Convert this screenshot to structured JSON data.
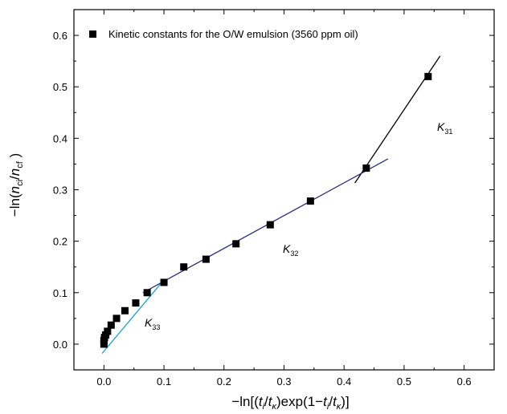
{
  "chart_data": {
    "type": "scatter",
    "xlabel": "−ln[(t_i/t_κ)exp(1−t_i/t_κ)]",
    "ylabel": "−ln(n_ci/n_cf)",
    "xlim": [
      -0.05,
      0.65
    ],
    "ylim": [
      -0.05,
      0.65
    ],
    "x_ticks": [
      "0.0",
      "0.1",
      "0.2",
      "0.3",
      "0.4",
      "0.5",
      "0.6"
    ],
    "y_ticks": [
      "0.0",
      "0.1",
      "0.2",
      "0.3",
      "0.4",
      "0.5",
      "0.6"
    ],
    "legend": {
      "position": "top-left",
      "entries": [
        "Kinetic constants for the O/W emulsion (3560 ppm oil)"
      ]
    },
    "series": [
      {
        "name": "Kinetic constants for the O/W emulsion (3560 ppm oil)",
        "marker": "square",
        "color": "#000000",
        "x": [
          0.0,
          0.0,
          0.001,
          0.003,
          0.006,
          0.012,
          0.021,
          0.035,
          0.053,
          0.072,
          0.1,
          0.133,
          0.17,
          0.22,
          0.277,
          0.344,
          0.437,
          0.54
        ],
        "y": [
          0.0,
          0.007,
          0.013,
          0.018,
          0.025,
          0.037,
          0.05,
          0.065,
          0.08,
          0.1,
          0.12,
          0.15,
          0.165,
          0.195,
          0.232,
          0.278,
          0.342,
          0.52
        ]
      }
    ],
    "fit_lines": [
      {
        "label": "K_31",
        "color": "#000000",
        "x": [
          0.418,
          0.56
        ],
        "y": [
          0.313,
          0.56
        ]
      },
      {
        "label": "K_32",
        "color": "#2b2b7a",
        "x": [
          0.065,
          0.473
        ],
        "y": [
          0.1,
          0.36
        ]
      },
      {
        "label": "K_33",
        "color": "#1a9fd0",
        "x": [
          -0.003,
          0.1
        ],
        "y": [
          -0.018,
          0.125
        ]
      }
    ],
    "annotations": [
      {
        "main": "K",
        "sub": "31"
      },
      {
        "main": "K",
        "sub": "32"
      },
      {
        "main": "K",
        "sub": "33"
      }
    ]
  }
}
